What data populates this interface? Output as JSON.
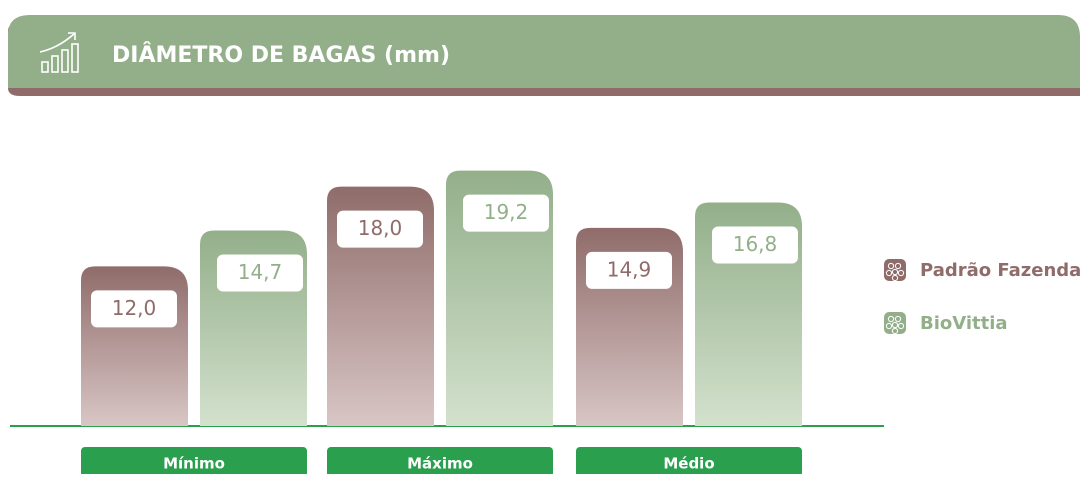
{
  "chart_data": {
    "type": "bar",
    "title": "DIÂMETRO DE BAGAS (mm)",
    "categories": [
      "Mínimo",
      "Máximo",
      "Médio"
    ],
    "series": [
      {
        "name": "Padrão Fazenda",
        "color": "#8f6c6a",
        "values": [
          12.0,
          18.0,
          14.9
        ],
        "value_labels": [
          "12,0",
          "18,0",
          "14,9"
        ]
      },
      {
        "name": "BioVittia",
        "color": "#93af8a",
        "values": [
          14.7,
          19.2,
          16.8
        ],
        "value_labels": [
          "14,7",
          "19,2",
          "16,8"
        ]
      }
    ],
    "ylim": [
      0,
      20
    ],
    "legend": "right"
  }
}
